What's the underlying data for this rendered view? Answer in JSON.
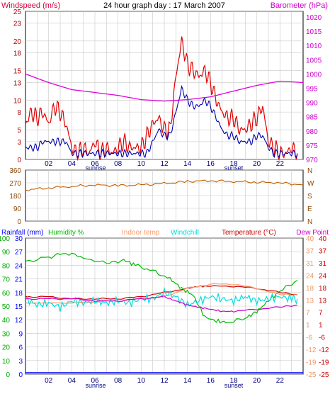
{
  "title": "24 hour graph day : 17 March 2007",
  "colors": {
    "windspeed_label": "#d4003c",
    "barometer_label": "#cc00cc",
    "gust": "#e00000",
    "avg": "#0000b0",
    "barometer": "#dd00dd",
    "wind_dir": "#c06000",
    "rainfall_label": "#0000ff",
    "humidity": "#00bb00",
    "indoor": "#ff9966",
    "windchill": "#00dddd",
    "temperature": "#cc0000",
    "dewpoint": "#cc00cc",
    "frame": "#000000",
    "grid": "#c8c8c8",
    "axis_text_left": "#b00000",
    "axis_text_right": "#cc00cc",
    "hour_text": "#000080",
    "dir_text": "#8b4500",
    "rain_axis": "#0000ff",
    "humidity_axis": "#00aa00",
    "temp_axis": "#cc0000",
    "indoor_axis": "#ee9966"
  },
  "hour_labels": [
    "02",
    "04",
    "06",
    "08",
    "10",
    "12",
    "14",
    "16",
    "18",
    "20",
    "22"
  ],
  "sunrise_label": "sunrise",
  "sunset_label": "sunset",
  "chart_data": [
    {
      "type": "line",
      "name": "wind-barometer",
      "left_axis_label": "Windspeed (m/s)",
      "right_axis_label": "Barometer (hPa)",
      "left_ticks": [
        0,
        3,
        5,
        8,
        10,
        13,
        15,
        18,
        20,
        23,
        25
      ],
      "right_ticks": [
        970,
        975,
        980,
        985,
        990,
        995,
        1000,
        1005,
        1010,
        1015,
        1020
      ],
      "ylim_left": [
        0,
        25
      ],
      "ylim_right": [
        970,
        1022
      ],
      "xlim_hours": [
        0,
        24
      ],
      "series": [
        {
          "key": "gust",
          "points": [
            [
              0,
              6
            ],
            [
              0.5,
              8
            ],
            [
              1,
              7
            ],
            [
              1.5,
              8
            ],
            [
              2,
              6
            ],
            [
              2.5,
              9
            ],
            [
              3,
              8
            ],
            [
              3.5,
              6
            ],
            [
              4,
              2
            ],
            [
              4.5,
              1
            ],
            [
              5,
              2
            ],
            [
              5.5,
              1
            ],
            [
              6,
              3
            ],
            [
              6.5,
              1
            ],
            [
              7,
              2
            ],
            [
              7.5,
              1
            ],
            [
              8,
              2
            ],
            [
              8.5,
              3
            ],
            [
              9,
              2
            ],
            [
              9.5,
              2
            ],
            [
              10,
              2
            ],
            [
              10.5,
              4
            ],
            [
              11,
              6
            ],
            [
              11.5,
              7
            ],
            [
              12,
              5
            ],
            [
              12.5,
              5
            ],
            [
              13,
              14
            ],
            [
              13.5,
              20
            ],
            [
              14,
              16
            ],
            [
              14.5,
              15
            ],
            [
              15,
              14
            ],
            [
              15.5,
              15
            ],
            [
              16,
              13
            ],
            [
              16.5,
              10
            ],
            [
              17,
              8
            ],
            [
              17.5,
              7
            ],
            [
              18,
              7
            ],
            [
              18.5,
              5
            ],
            [
              19,
              5
            ],
            [
              19.5,
              6
            ],
            [
              20,
              7
            ],
            [
              20.5,
              9
            ],
            [
              21,
              3
            ],
            [
              21.5,
              2
            ],
            [
              22,
              1
            ],
            [
              22.5,
              1
            ],
            [
              23,
              2
            ],
            [
              23.5,
              1
            ]
          ]
        },
        {
          "key": "avg",
          "points": [
            [
              0,
              2
            ],
            [
              0.5,
              2
            ],
            [
              1,
              2
            ],
            [
              1.5,
              3
            ],
            [
              2,
              3
            ],
            [
              2.5,
              3
            ],
            [
              3,
              3
            ],
            [
              3.5,
              3
            ],
            [
              4,
              1
            ],
            [
              4.5,
              1
            ],
            [
              5,
              1
            ],
            [
              5.5,
              1
            ],
            [
              6,
              1
            ],
            [
              6.5,
              1
            ],
            [
              7,
              1
            ],
            [
              7.5,
              1
            ],
            [
              8,
              1
            ],
            [
              8.5,
              1
            ],
            [
              9,
              1
            ],
            [
              9.5,
              1
            ],
            [
              10,
              1
            ],
            [
              10.5,
              1
            ],
            [
              11,
              3
            ],
            [
              11.5,
              5
            ],
            [
              12,
              4
            ],
            [
              12.5,
              4
            ],
            [
              13,
              8
            ],
            [
              13.5,
              12
            ],
            [
              14,
              10
            ],
            [
              14.5,
              9
            ],
            [
              15,
              9
            ],
            [
              15.5,
              10
            ],
            [
              16,
              9
            ],
            [
              16.5,
              7
            ],
            [
              17,
              5
            ],
            [
              17.5,
              4
            ],
            [
              18,
              4
            ],
            [
              18.5,
              3
            ],
            [
              19,
              3
            ],
            [
              19.5,
              3
            ],
            [
              20,
              4
            ],
            [
              20.5,
              4
            ],
            [
              21,
              2
            ],
            [
              21.5,
              1
            ],
            [
              22,
              1
            ],
            [
              22.5,
              1
            ],
            [
              23,
              1
            ],
            [
              23.5,
              1
            ]
          ]
        },
        {
          "key": "barometer",
          "axis": "right",
          "points": [
            [
              0,
              1000
            ],
            [
              2,
              997
            ],
            [
              4,
              994.5
            ],
            [
              6,
              993.5
            ],
            [
              8,
              992.5
            ],
            [
              10,
              991
            ],
            [
              12,
              990.5
            ],
            [
              14,
              991
            ],
            [
              16,
              992
            ],
            [
              18,
              994
            ],
            [
              20,
              996
            ],
            [
              22,
              997.5
            ],
            [
              24,
              997
            ]
          ]
        }
      ]
    },
    {
      "type": "scatter",
      "name": "wind-direction",
      "left_ticks": [
        0,
        90,
        180,
        270,
        360
      ],
      "right_labels": [
        "N",
        "W",
        "S",
        "E",
        "N"
      ],
      "ylim": [
        0,
        360
      ],
      "series": [
        {
          "key": "wind_dir",
          "points": [
            [
              0,
              220
            ],
            [
              2,
              235
            ],
            [
              4,
              245
            ],
            [
              6,
              255
            ],
            [
              8,
              250
            ],
            [
              10,
              255
            ],
            [
              12,
              265
            ],
            [
              14,
              280
            ],
            [
              16,
              285
            ],
            [
              18,
              280
            ],
            [
              20,
              275
            ],
            [
              22,
              270
            ],
            [
              24,
              255
            ]
          ]
        }
      ]
    },
    {
      "type": "line",
      "name": "rain-humidity-temperature",
      "labels": {
        "rainfall": "Rainfall (mm)",
        "humidity": "Humidity %",
        "indoor": "Indoor temp",
        "windchill": "Windchill",
        "temperature": "Temperature (°C)",
        "dewpoint": "Dew Point"
      },
      "rain_ticks": [
        0,
        3,
        6,
        9,
        12,
        15,
        18,
        21,
        24,
        27,
        30
      ],
      "humidity_ticks": [
        0,
        10,
        20,
        30,
        40,
        50,
        60,
        70,
        80,
        90,
        100
      ],
      "temp_ticks": [
        -25,
        -19,
        -12,
        -6,
        1,
        7,
        13,
        18,
        24,
        31,
        37,
        40
      ],
      "indoor_ticks": [
        -25,
        -19,
        -12,
        -6,
        1,
        7,
        13,
        18,
        24,
        31,
        37,
        40
      ],
      "ylim_temp": [
        -25,
        40
      ],
      "series": [
        {
          "key": "humidity",
          "points": [
            [
              0,
              83
            ],
            [
              2,
              86
            ],
            [
              3.5,
              89
            ],
            [
              5,
              86
            ],
            [
              7,
              81
            ],
            [
              8.5,
              84
            ],
            [
              9.5,
              80
            ],
            [
              11,
              76
            ],
            [
              12.5,
              70
            ],
            [
              13.5,
              63
            ],
            [
              14.5,
              58
            ],
            [
              15.5,
              42
            ],
            [
              16.5,
              39
            ],
            [
              17.5,
              38
            ],
            [
              19,
              41
            ],
            [
              20,
              46
            ],
            [
              21,
              54
            ],
            [
              22,
              61
            ],
            [
              23.5,
              69
            ]
          ]
        },
        {
          "key": "temperature",
          "points": [
            [
              0,
              12
            ],
            [
              2,
              12
            ],
            [
              4,
              11
            ],
            [
              6,
              11
            ],
            [
              8,
              11
            ],
            [
              10,
              12
            ],
            [
              12,
              14
            ],
            [
              14,
              16
            ],
            [
              15,
              17
            ],
            [
              16,
              17
            ],
            [
              18,
              17
            ],
            [
              20,
              16
            ],
            [
              22,
              14
            ],
            [
              23.5,
              13
            ]
          ]
        },
        {
          "key": "indoor",
          "points": [
            [
              0,
              9
            ],
            [
              4,
              9
            ],
            [
              8,
              10
            ],
            [
              12,
              12
            ],
            [
              14,
              16
            ],
            [
              16,
              18
            ],
            [
              18,
              18
            ],
            [
              20,
              16
            ],
            [
              22,
              13
            ],
            [
              23.5,
              13
            ]
          ]
        },
        {
          "key": "windchill",
          "points": [
            [
              0,
              11
            ],
            [
              1,
              8
            ],
            [
              2,
              9
            ],
            [
              3,
              7
            ],
            [
              4,
              10
            ],
            [
              5,
              9
            ],
            [
              6,
              10
            ],
            [
              7,
              9
            ],
            [
              8,
              10
            ],
            [
              9,
              9
            ],
            [
              10,
              11
            ],
            [
              11,
              11
            ],
            [
              12,
              14
            ],
            [
              13,
              12
            ],
            [
              14,
              8
            ],
            [
              15,
              10
            ],
            [
              16,
              12
            ],
            [
              17,
              11
            ],
            [
              18,
              10
            ],
            [
              19,
              12
            ],
            [
              20,
              10
            ],
            [
              21,
              11
            ],
            [
              22,
              12
            ],
            [
              23,
              11
            ],
            [
              23.5,
              11
            ]
          ]
        },
        {
          "key": "dewpoint",
          "points": [
            [
              0,
              11
            ],
            [
              2,
              11
            ],
            [
              4,
              11
            ],
            [
              6,
              10
            ],
            [
              8,
              10
            ],
            [
              10,
              11
            ],
            [
              12,
              12
            ],
            [
              13,
              10
            ],
            [
              14,
              8
            ],
            [
              15,
              7
            ],
            [
              16,
              6
            ],
            [
              17,
              5
            ],
            [
              18,
              5
            ],
            [
              20,
              6
            ],
            [
              22,
              7
            ],
            [
              23.5,
              8
            ]
          ]
        }
      ]
    }
  ]
}
